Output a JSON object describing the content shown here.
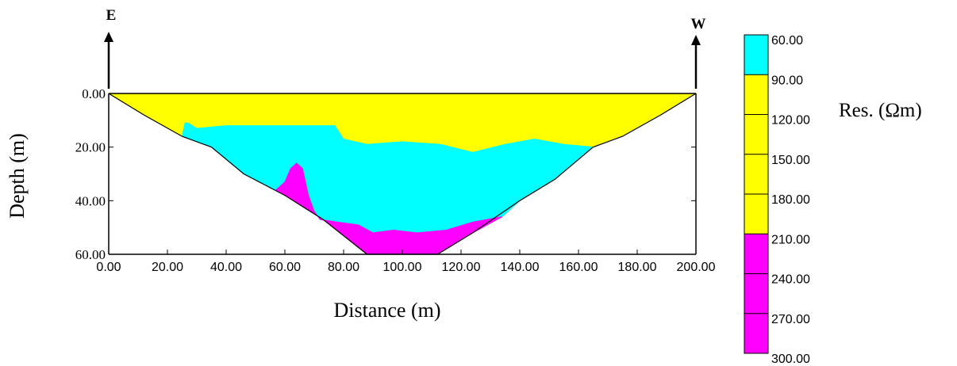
{
  "chart_data": {
    "type": "heatmap",
    "xlabel": "Distance (m)",
    "ylabel": "Depth (m)",
    "xlim": [
      0,
      200
    ],
    "ylim": [
      0,
      60
    ],
    "y_inverted": true,
    "x_ticks": [
      "0.00",
      "20.00",
      "40.00",
      "60.00",
      "80.00",
      "100.00",
      "120.00",
      "140.00",
      "160.00",
      "180.00",
      "200.00"
    ],
    "y_ticks": [
      "0.00",
      "20.00",
      "40.00",
      "60.00"
    ],
    "direction_labels": {
      "left": "E",
      "right": "W"
    },
    "colorbar": {
      "title": "Res. (Ωm)",
      "ticks": [
        "60.00",
        "90.00",
        "120.00",
        "150.00",
        "180.00",
        "210.00",
        "240.00",
        "270.00",
        "300.00"
      ],
      "bands": [
        {
          "from": 60,
          "to": 90,
          "color": "#00FFFF"
        },
        {
          "from": 90,
          "to": 210,
          "color": "#FFFF00"
        },
        {
          "from": 210,
          "to": 300,
          "color": "#FF00FF"
        }
      ]
    },
    "section_boundary": [
      [
        0,
        0
      ],
      [
        12,
        8
      ],
      [
        25,
        16
      ],
      [
        35,
        20
      ],
      [
        46,
        30
      ],
      [
        60,
        38
      ],
      [
        73,
        47
      ],
      [
        88,
        60
      ],
      [
        112,
        60
      ],
      [
        124,
        52
      ],
      [
        140,
        40
      ],
      [
        152,
        32
      ],
      [
        165,
        20
      ],
      [
        175,
        16
      ],
      [
        188,
        8
      ],
      [
        200,
        0
      ]
    ],
    "zones": [
      {
        "resistivity_band": "90-210",
        "color": "#FFFF00",
        "polygon": [
          [
            0,
            0
          ],
          [
            200,
            0
          ],
          [
            188,
            8
          ],
          [
            175,
            16
          ],
          [
            165,
            20
          ],
          [
            155,
            19
          ],
          [
            145,
            17
          ],
          [
            135,
            19
          ],
          [
            124,
            22
          ],
          [
            113,
            19
          ],
          [
            100,
            18
          ],
          [
            88,
            19
          ],
          [
            80,
            17
          ],
          [
            77,
            12
          ],
          [
            70,
            12
          ],
          [
            60,
            12
          ],
          [
            50,
            12
          ],
          [
            40,
            12
          ],
          [
            30,
            13
          ],
          [
            27,
            11
          ],
          [
            26,
            11
          ],
          [
            25,
            16
          ],
          [
            12,
            8
          ]
        ]
      },
      {
        "resistivity_band": "60-90",
        "color": "#00FFFF",
        "polygon": [
          [
            25,
            16
          ],
          [
            26,
            11
          ],
          [
            27,
            11
          ],
          [
            30,
            13
          ],
          [
            40,
            12
          ],
          [
            50,
            12
          ],
          [
            60,
            12
          ],
          [
            70,
            12
          ],
          [
            77,
            12
          ],
          [
            80,
            17
          ],
          [
            88,
            19
          ],
          [
            100,
            18
          ],
          [
            113,
            19
          ],
          [
            124,
            22
          ],
          [
            135,
            19
          ],
          [
            145,
            17
          ],
          [
            155,
            19
          ],
          [
            165,
            20
          ],
          [
            152,
            32
          ],
          [
            140,
            40
          ],
          [
            134,
            46
          ],
          [
            124,
            48
          ],
          [
            115,
            51
          ],
          [
            105,
            52
          ],
          [
            97,
            51
          ],
          [
            90,
            52
          ],
          [
            85,
            49
          ],
          [
            78,
            48
          ],
          [
            72,
            47
          ],
          [
            70,
            44
          ],
          [
            68,
            38
          ],
          [
            66,
            28
          ],
          [
            64,
            26
          ],
          [
            62,
            28
          ],
          [
            60,
            33
          ],
          [
            57,
            36
          ],
          [
            60,
            38
          ],
          [
            46,
            30
          ],
          [
            35,
            20
          ]
        ]
      },
      {
        "resistivity_band": "210-300",
        "color": "#FF00FF",
        "polygon": [
          [
            57,
            36
          ],
          [
            60,
            33
          ],
          [
            62,
            28
          ],
          [
            64,
            26
          ],
          [
            66,
            28
          ],
          [
            68,
            38
          ],
          [
            70,
            44
          ],
          [
            72,
            47
          ],
          [
            78,
            48
          ],
          [
            85,
            49
          ],
          [
            90,
            52
          ],
          [
            97,
            51
          ],
          [
            105,
            52
          ],
          [
            115,
            51
          ],
          [
            124,
            48
          ],
          [
            134,
            46
          ],
          [
            124,
            52
          ],
          [
            112,
            60
          ],
          [
            88,
            60
          ],
          [
            73,
            47
          ],
          [
            60,
            38
          ]
        ]
      }
    ]
  }
}
